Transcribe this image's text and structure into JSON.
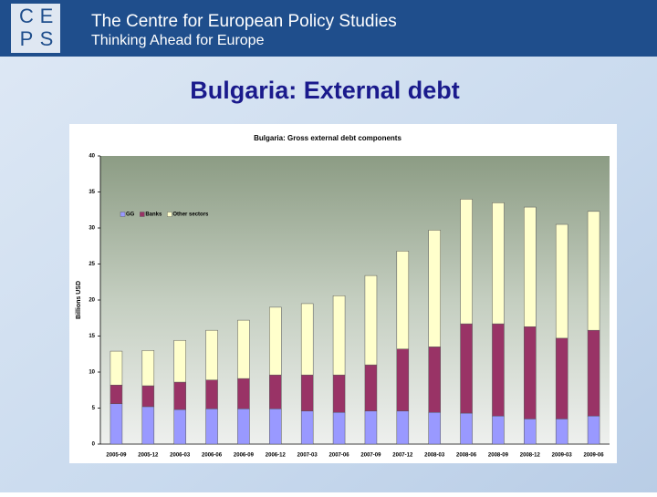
{
  "header": {
    "logo": [
      "C",
      "E",
      "P",
      "S"
    ],
    "title": "The Centre for European Policy Studies",
    "subtitle": "Thinking Ahead for Europe"
  },
  "slide_title": "Bulgaria: External debt",
  "chart_data": {
    "type": "bar",
    "stacked": true,
    "title": "Bulgaria: Gross external debt components",
    "y_label": "Billions USD",
    "categories": [
      "2005-09",
      "2005-12",
      "2006-03",
      "2006-06",
      "2006-09",
      "2006-12",
      "2007-03",
      "2007-06",
      "2007-09",
      "2007-12",
      "2008-03",
      "2008-06",
      "2008-09",
      "2008-12",
      "2009-03",
      "2009-06"
    ],
    "series": [
      {
        "name": "GG",
        "color": "#9999ff",
        "values": [
          5.6,
          5.2,
          4.8,
          4.9,
          4.9,
          4.9,
          4.6,
          4.4,
          4.6,
          4.6,
          4.4,
          4.3,
          3.9,
          3.5,
          3.5,
          3.9
        ]
      },
      {
        "name": "Banks",
        "color": "#993366",
        "values": [
          2.6,
          2.9,
          3.8,
          4.0,
          4.2,
          4.7,
          5.0,
          5.2,
          6.4,
          8.6,
          9.1,
          12.4,
          12.8,
          12.8,
          11.2,
          11.9
        ]
      },
      {
        "name": "Other sectors",
        "color": "#ffffcc",
        "values": [
          4.7,
          4.9,
          5.8,
          6.9,
          8.1,
          9.4,
          9.9,
          11.0,
          12.4,
          13.6,
          16.2,
          17.3,
          16.8,
          16.6,
          15.8,
          16.5
        ]
      }
    ],
    "ylim": [
      0,
      40
    ],
    "yticks": [
      0,
      5,
      10,
      15,
      20,
      25,
      30,
      35,
      40
    ],
    "legend": "top-left"
  }
}
